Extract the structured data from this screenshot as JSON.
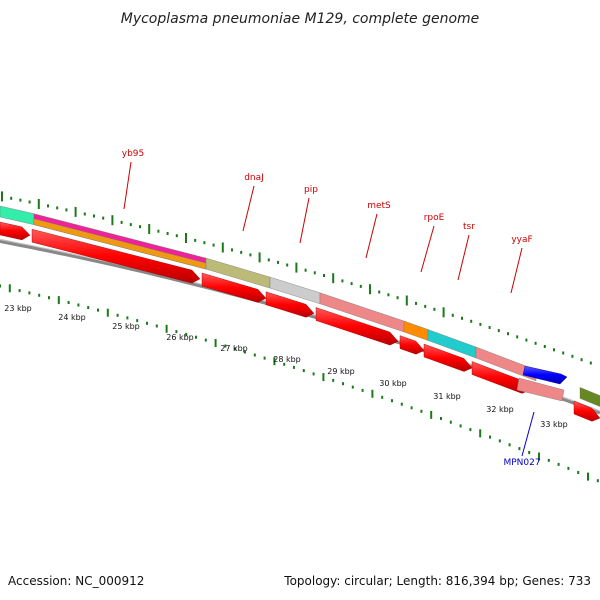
{
  "title": "Mycoplasma pneumoniae M129, complete genome",
  "footer": {
    "accession": "Accession: NC_000912",
    "summary": "Topology: circular; Length: 816,394 bp; Genes: 733"
  },
  "ruler": {
    "labels": [
      "23 kbp",
      "24 kbp",
      "25 kbp",
      "26 kbp",
      "27 kbp",
      "28 kbp",
      "29 kbp",
      "30 kbp",
      "31 kbp",
      "32 kbp",
      "33 kbp"
    ]
  },
  "colors": {
    "cds_red": "#ff0000",
    "backbone_gray": "#888888",
    "tick_green": "#1a7a1a",
    "label_red": "#cc0000",
    "label_blue": "#0000cc",
    "feature_blue": "#0000ff"
  },
  "genes": {
    "forward_labels": [
      "yb95",
      "dnaJ",
      "pip",
      "metS",
      "rpoE",
      "tsr",
      "yyaF"
    ],
    "reverse_labels": [
      "MPN027"
    ]
  },
  "features": {
    "cog_colors": [
      "#33eeaa",
      "#ee2299",
      "#ee9911",
      "#bbbb77",
      "#cccccc",
      "#ee8888",
      "#ff8c00",
      "#22cccc",
      "#ee8888",
      "#668822"
    ]
  }
}
